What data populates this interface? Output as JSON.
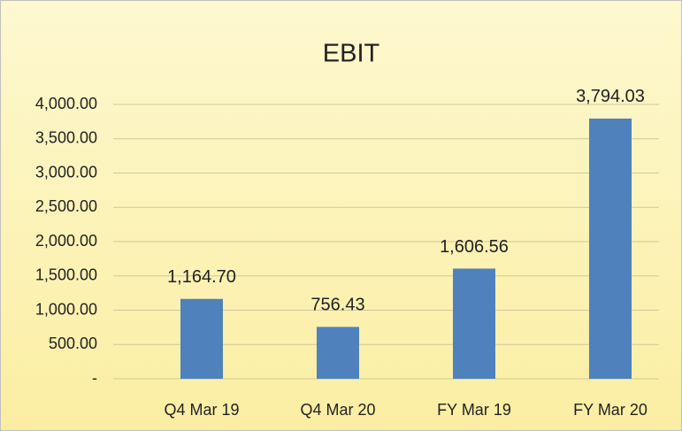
{
  "chart_data": {
    "type": "bar",
    "title": "EBIT",
    "categories": [
      "Q4 Mar 19",
      "Q4 Mar 20",
      "FY Mar 19",
      "FY Mar 20"
    ],
    "values": [
      1164.7,
      756.43,
      1606.56,
      3794.03
    ],
    "value_labels": [
      "1,164.70",
      "756.43",
      "1,606.56",
      "3,794.03"
    ],
    "color": "#4f81bd",
    "ylim": [
      0,
      4000
    ],
    "yticks": [
      {
        "value": 0,
        "label": "-"
      },
      {
        "value": 500,
        "label": "500.00"
      },
      {
        "value": 1000,
        "label": "1,000.00"
      },
      {
        "value": 1500,
        "label": "1,500.00"
      },
      {
        "value": 2000,
        "label": "2,000.00"
      },
      {
        "value": 2500,
        "label": "2,500.00"
      },
      {
        "value": 3000,
        "label": "3,000.00"
      },
      {
        "value": 3500,
        "label": "3,500.00"
      },
      {
        "value": 4000,
        "label": "4,000.00"
      }
    ],
    "grid": true
  }
}
